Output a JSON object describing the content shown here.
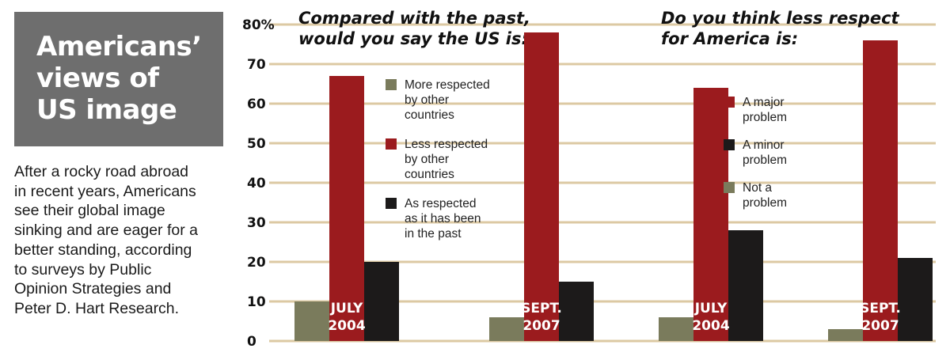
{
  "title_lines": [
    "Americans’",
    "views of",
    "US image"
  ],
  "description_lines": [
    "After a rocky road abroad",
    "in recent years, Americans",
    "see their global image",
    "sinking and are eager for a",
    "better standing, according",
    "to surveys by Public",
    "Opinion Strategies and",
    "Peter D. Hart Research."
  ],
  "colors": {
    "red": "#9b1b1e",
    "black": "#1c1a1a",
    "green": "#7a7b5c",
    "gridline": "#dcc9a3",
    "title_bg": "#6e6e6e"
  },
  "chart_data": {
    "type": "bar",
    "ylim": [
      0,
      80
    ],
    "y_ticks": [
      "0",
      "10",
      "20",
      "30",
      "40",
      "50",
      "60",
      "70",
      "80%"
    ],
    "grid": true,
    "panels": [
      {
        "question_lines": [
          "Compared with the past,",
          "would you say the US is:"
        ],
        "categories": [
          "JULY 2004",
          "SEPT. 2007"
        ],
        "category_label_lines": [
          [
            "JULY",
            "2004"
          ],
          [
            "SEPT.",
            "2007"
          ]
        ],
        "series": [
          {
            "name": "More respected by other countries",
            "legend_lines": [
              "More respected",
              "by other",
              "countries"
            ],
            "color": "#7a7b5c",
            "values": [
              10,
              6
            ]
          },
          {
            "name": "Less respected by other countries",
            "legend_lines": [
              "Less respected",
              "by other",
              "countries"
            ],
            "color": "#9b1b1e",
            "values": [
              67,
              78
            ]
          },
          {
            "name": "As respected as it has been in the past",
            "legend_lines": [
              "As respected",
              "as it has been",
              "in the past"
            ],
            "color": "#1c1a1a",
            "values": [
              20,
              15
            ]
          }
        ]
      },
      {
        "question_lines": [
          "Do you think less respect",
          "for America is:"
        ],
        "categories": [
          "JULY 2004",
          "SEPT. 2007"
        ],
        "category_label_lines": [
          [
            "JULY",
            "2004"
          ],
          [
            "SEPT.",
            "2007"
          ]
        ],
        "series": [
          {
            "name": "A major problem",
            "legend_lines": [
              "A major",
              "problem"
            ],
            "color": "#9b1b1e",
            "values": [
              64,
              76
            ]
          },
          {
            "name": "A minor problem",
            "legend_lines": [
              "A minor",
              "problem"
            ],
            "color": "#1c1a1a",
            "values": [
              28,
              21
            ]
          },
          {
            "name": "Not a problem",
            "legend_lines": [
              "Not a",
              "problem"
            ],
            "color": "#7a7b5c",
            "values": [
              6,
              3
            ]
          }
        ]
      }
    ]
  }
}
